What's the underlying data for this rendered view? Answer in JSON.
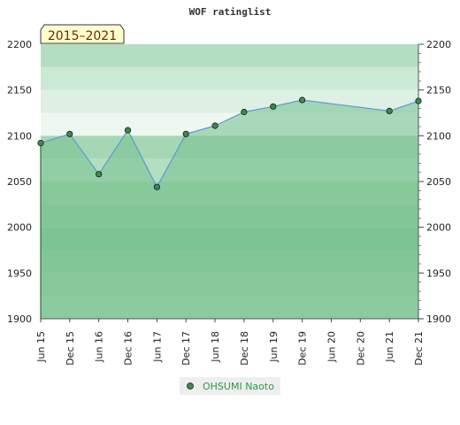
{
  "chart_data": {
    "type": "area",
    "title": "WOF ratinglist",
    "period_label": "2015–2021",
    "ylim": [
      1900,
      2200
    ],
    "yticks": [
      1900,
      1950,
      2000,
      2050,
      2100,
      2150,
      2200
    ],
    "ytick_labels": [
      "1900",
      "1950",
      "2000",
      "2050",
      "2100",
      "2150",
      "2200"
    ],
    "xticks": [
      "Jun 15",
      "Dec 15",
      "Jun 16",
      "Dec 16",
      "Jun 17",
      "Dec 17",
      "Jun 18",
      "Dec 18",
      "Jun 19",
      "Dec 19",
      "Jun 20",
      "Dec 20",
      "Jun 21",
      "Dec 21"
    ],
    "series": [
      {
        "name": "OHSUMI Naoto",
        "color": "#3a8a4a",
        "points": [
          {
            "x": "Jun 15",
            "y": 2092
          },
          {
            "x": "Dec 15",
            "y": 2102
          },
          {
            "x": "Jun 16",
            "y": 2058
          },
          {
            "x": "Dec 16",
            "y": 2106
          },
          {
            "x": "Jun 17",
            "y": 2044
          },
          {
            "x": "Dec 17",
            "y": 2102
          },
          {
            "x": "Jun 18",
            "y": 2111
          },
          {
            "x": "Dec 18",
            "y": 2126
          },
          {
            "x": "Jun 19",
            "y": 2132
          },
          {
            "x": "Dec 19",
            "y": 2139
          },
          {
            "x": "Jun 21",
            "y": 2127
          },
          {
            "x": "Dec 21",
            "y": 2138
          }
        ]
      }
    ],
    "grid": true,
    "legend_position": "bottom-center",
    "colors": {
      "fill": "#7cc392",
      "line": "#5b9bd5",
      "marker": "#3d8a50",
      "badge_bg": "#ffffcc"
    }
  }
}
